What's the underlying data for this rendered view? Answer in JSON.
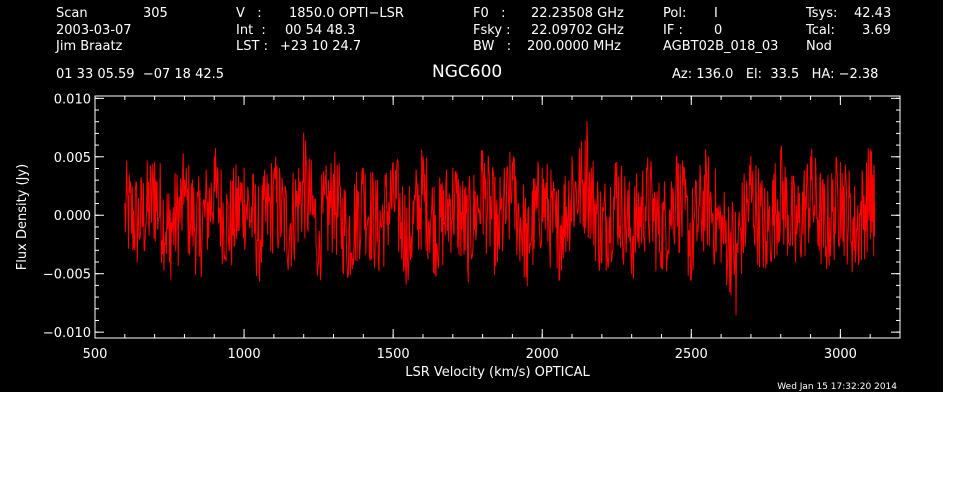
{
  "header": {
    "scan_label": "Scan",
    "scan_value": "305",
    "date": "2003-03-07",
    "observer": "Jim Braatz",
    "coords": "01 33 05.59  −07 18 42.5",
    "v_label": "V   :",
    "v_value": "1850.0 OPTI−LSR",
    "int_label": "Int  :",
    "int_value": "00 54 48.3",
    "lst_label": "LST :",
    "lst_value": "+23 10 24.7",
    "f0_label": "F0   :",
    "f0_value": "22.23508 GHz",
    "fsky_label": "Fsky :",
    "fsky_value": "22.09702 GHz",
    "bw_label": "BW   :",
    "bw_value": "200.0000 MHz",
    "pol_label": "Pol:",
    "pol_value": "I",
    "if_label": "IF :",
    "if_value": "0",
    "session": "AGBT02B_018_03",
    "tsys_label": "Tsys:",
    "tsys_value": "42.43",
    "tcal_label": "Tcal:",
    "tcal_value": "3.69",
    "nod": "Nod",
    "source": "NGC600",
    "az_el_ha": "Az: 136.0   El:  33.5   HA: −2.38"
  },
  "footer_timestamp": "Wed Jan 15 17:32:20 2014",
  "chart_data": {
    "type": "line",
    "title": "NGC600",
    "xlabel": "LSR Velocity (km/s) OPTICAL",
    "ylabel": "Flux Density (Jy)",
    "xlim": [
      500,
      3200
    ],
    "ylim": [
      -0.0105,
      0.0102
    ],
    "xticks": [
      500,
      1000,
      1500,
      2000,
      2500,
      3000
    ],
    "xtick_labels": [
      "500",
      "1000",
      "1500",
      "2000",
      "2500",
      "3000"
    ],
    "yticks": [
      -0.01,
      -0.005,
      0.0,
      0.005,
      0.01
    ],
    "ytick_labels": [
      "−0.010",
      "−0.005",
      "0.000",
      "0.005",
      "0.010"
    ],
    "x_minor_step": 100,
    "y_minor_step": 0.001,
    "grid": false,
    "background_color": "#000000",
    "axis_color": "#ffffff",
    "series": [
      {
        "color": "#ff0000",
        "description": "noise-dominated spectrum, approx. mean 0.000 Jy, rms ~0.0025 Jy, peaks to about +0.009 / −0.009 Jy",
        "x": [
          600,
          650,
          700,
          750,
          800,
          850,
          900,
          950,
          1000,
          1050,
          1100,
          1150,
          1200,
          1250,
          1300,
          1350,
          1400,
          1450,
          1500,
          1550,
          1600,
          1650,
          1700,
          1750,
          1800,
          1850,
          1900,
          1950,
          2000,
          2050,
          2100,
          2150,
          2200,
          2250,
          2300,
          2350,
          2400,
          2450,
          2500,
          2550,
          2600,
          2650,
          2700,
          2750,
          2800,
          2850,
          2900,
          2950,
          3000,
          3050,
          3100,
          3115
        ],
        "y": [
          0.001,
          -0.002,
          0.0045,
          -0.004,
          0.003,
          -0.0035,
          0.005,
          -0.003,
          0.004,
          -0.0045,
          0.0035,
          -0.003,
          0.007,
          -0.004,
          0.0035,
          -0.005,
          0.004,
          -0.0035,
          0.0045,
          -0.0055,
          0.005,
          -0.004,
          0.004,
          -0.0045,
          0.0055,
          -0.004,
          0.0045,
          -0.006,
          0.004,
          -0.0045,
          0.005,
          0.008,
          -0.004,
          0.0045,
          -0.005,
          0.004,
          -0.0045,
          0.005,
          -0.0055,
          0.0045,
          -0.004,
          -0.0085,
          0.005,
          -0.0045,
          0.0055,
          -0.004,
          0.005,
          -0.0035,
          0.0045,
          -0.004,
          0.0055,
          0.001
        ]
      }
    ]
  }
}
